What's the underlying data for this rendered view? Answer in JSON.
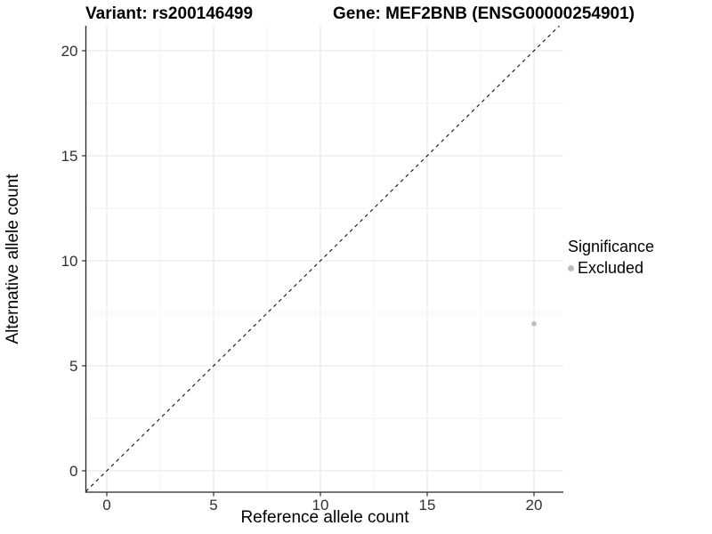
{
  "chart_data": {
    "type": "scatter",
    "titles": {
      "variant": "Variant: rs200146499",
      "gene": "Gene: MEF2BNB (ENSG00000254901)"
    },
    "xlabel": "Reference allele count",
    "ylabel": "Alternative allele count",
    "xticks": [
      0,
      5,
      10,
      15,
      20
    ],
    "yticks": [
      0,
      5,
      10,
      15,
      20
    ],
    "minor_tick_step": 2.5,
    "xlim": [
      -1,
      21.2
    ],
    "ylim": [
      -1,
      21.2
    ],
    "grid": "major+minor",
    "reference_line": {
      "type": "identity",
      "equation": "y = x",
      "style": "dashed",
      "color": "#111111"
    },
    "series": [
      {
        "name": "Excluded",
        "color": "#bdbdbd",
        "points": [
          {
            "x": 20,
            "y": 7
          }
        ]
      }
    ],
    "legend": {
      "title": "Significance",
      "position": "right",
      "entries": [
        {
          "label": "Excluded",
          "color": "#bdbdbd"
        }
      ]
    }
  },
  "colors": {
    "background": "#ffffff",
    "grid_major": "#e6e6e6",
    "grid_minor": "#f3f3f3",
    "axis_line": "#252525",
    "tick_mark": "#333333",
    "tick_text": "#303030",
    "point": "#bdbdbd"
  }
}
